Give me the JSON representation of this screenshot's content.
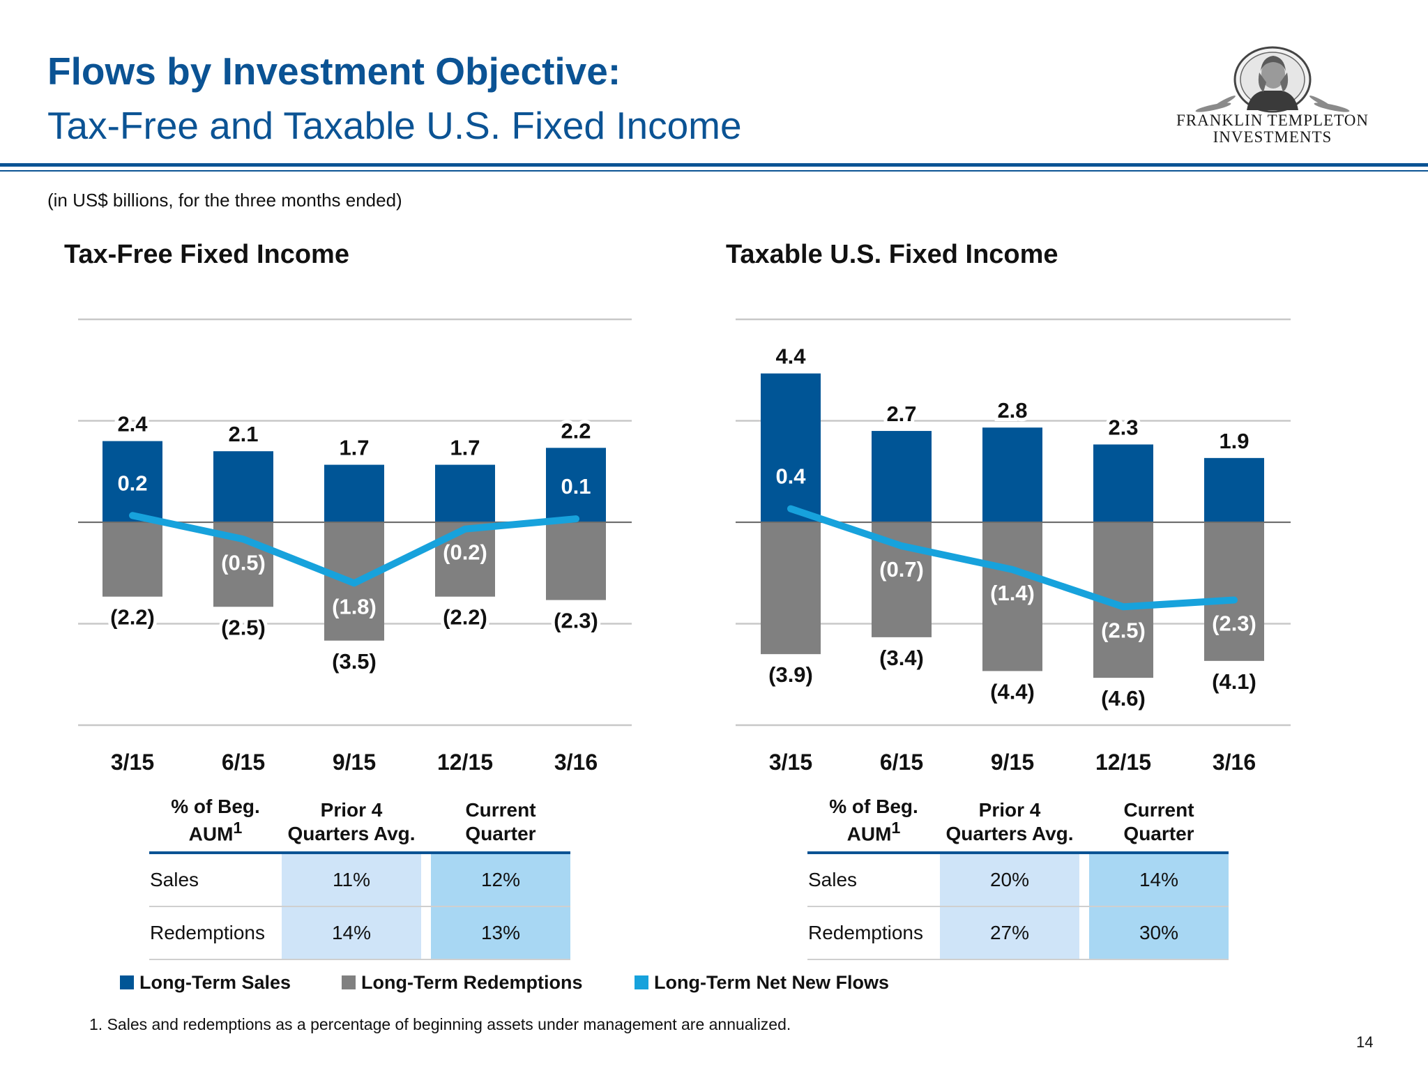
{
  "header": {
    "title": "Flows by Investment Objective:",
    "subtitle": "Tax-Free and Taxable U.S. Fixed Income",
    "units_note": "(in US$ billions, for the three months ended)"
  },
  "logo": {
    "line1": "FRANKLIN TEMPLETON",
    "line2": "INVESTMENTS"
  },
  "colors": {
    "sales": "#005596",
    "redemptions": "#808080",
    "net_flows": "#17a2dc",
    "heading_blue": "#0b5394"
  },
  "chart_data": [
    {
      "type": "bar",
      "title": "Tax-Free Fixed Income",
      "categories": [
        "3/15",
        "6/15",
        "9/15",
        "12/15",
        "3/16"
      ],
      "series": [
        {
          "name": "Long-Term Sales",
          "values": [
            2.4,
            2.1,
            1.7,
            1.7,
            2.2
          ]
        },
        {
          "name": "Long-Term Redemptions",
          "values": [
            -2.2,
            -2.5,
            -3.5,
            -2.2,
            -2.3
          ]
        },
        {
          "name": "Long-Term Net New Flows",
          "values": [
            0.2,
            -0.5,
            -1.8,
            -0.2,
            0.1
          ]
        }
      ],
      "sales_labels": [
        "2.4",
        "2.1",
        "1.7",
        "1.7",
        "2.2"
      ],
      "redemption_labels": [
        "(2.2)",
        "(2.5)",
        "(3.5)",
        "(2.2)",
        "(2.3)"
      ],
      "net_labels": [
        "0.2",
        "(0.5)",
        "(1.8)",
        "(0.2)",
        "0.1"
      ],
      "ylim": [
        -6,
        6
      ],
      "grid": true
    },
    {
      "type": "bar",
      "title": "Taxable U.S. Fixed Income",
      "categories": [
        "3/15",
        "6/15",
        "9/15",
        "12/15",
        "3/16"
      ],
      "series": [
        {
          "name": "Long-Term Sales",
          "values": [
            4.4,
            2.7,
            2.8,
            2.3,
            1.9
          ]
        },
        {
          "name": "Long-Term Redemptions",
          "values": [
            -3.9,
            -3.4,
            -4.4,
            -4.6,
            -4.1
          ]
        },
        {
          "name": "Long-Term Net New Flows",
          "values": [
            0.4,
            -0.7,
            -1.4,
            -2.5,
            -2.3
          ]
        }
      ],
      "sales_labels": [
        "4.4",
        "2.7",
        "2.8",
        "2.3",
        "1.9"
      ],
      "redemption_labels": [
        "(3.9)",
        "(3.4)",
        "(4.4)",
        "(4.6)",
        "(4.1)"
      ],
      "net_labels": [
        "0.4",
        "(0.7)",
        "(1.4)",
        "(2.5)",
        "(2.3)"
      ],
      "ylim": [
        -6,
        6
      ],
      "grid": true
    }
  ],
  "tables": [
    {
      "headers": [
        "% of Beg. AUM",
        "Prior 4 Quarters Avg.",
        "Current Quarter"
      ],
      "header_sup": "1",
      "rows": [
        {
          "label": "Sales",
          "prior": "11%",
          "current": "12%"
        },
        {
          "label": "Redemptions",
          "prior": "14%",
          "current": "13%"
        }
      ]
    },
    {
      "headers": [
        "% of Beg. AUM",
        "Prior 4 Quarters Avg.",
        "Current Quarter"
      ],
      "header_sup": "1",
      "rows": [
        {
          "label": "Sales",
          "prior": "20%",
          "current": "14%"
        },
        {
          "label": "Redemptions",
          "prior": "27%",
          "current": "30%"
        }
      ]
    }
  ],
  "legend": [
    {
      "label": "Long-Term Sales",
      "color": "#005596"
    },
    {
      "label": "Long-Term Redemptions",
      "color": "#808080"
    },
    {
      "label": "Long-Term Net New Flows",
      "color": "#17a2dc"
    }
  ],
  "footnote": "1.  Sales and redemptions as a percentage of beginning assets under management are annualized.",
  "page_number": "14"
}
